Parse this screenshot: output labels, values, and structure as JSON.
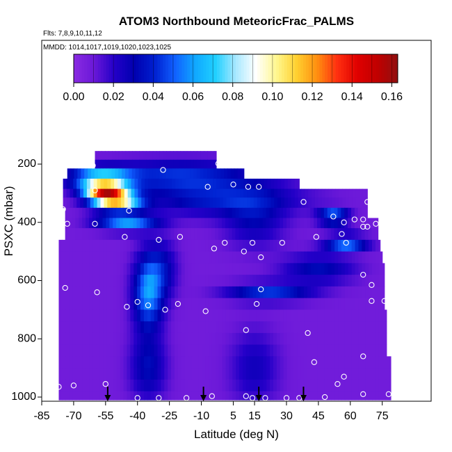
{
  "chart_data": {
    "type": "heatmap",
    "title": "ATOM3 Northbound MeteoricFrac_PALMS",
    "subtitle_flights": "Flts: 7,8,9,10,11,12",
    "subtitle_dates": "MMDD: 1014,1017,1019,1020,1023,1025",
    "xlabel": "Latitude (deg N)",
    "ylabel": "PSXC (mbar)",
    "xlim": [
      -85,
      85
    ],
    "ylim": [
      1010,
      150
    ],
    "x_ticks": [
      "-85",
      "-70",
      "-55",
      "-40",
      "-25",
      "-10",
      "5",
      "15",
      "30",
      "45",
      "60",
      "75"
    ],
    "x_tick_values": [
      -85,
      -70,
      -55,
      -40,
      -25,
      -10,
      5,
      15,
      30,
      45,
      60,
      75
    ],
    "y_ticks": [
      "200",
      "400",
      "600",
      "800",
      "1000"
    ],
    "y_tick_values": [
      200,
      400,
      600,
      800,
      1000
    ],
    "colorbar": {
      "min": 0.0,
      "max": 0.163,
      "ticks": [
        "0.00",
        "0.02",
        "0.04",
        "0.06",
        "0.08",
        "0.10",
        "0.12",
        "0.14",
        "0.16"
      ],
      "tick_values": [
        0.0,
        0.02,
        0.04,
        0.06,
        0.08,
        0.1,
        0.12,
        0.14,
        0.16
      ],
      "colors": [
        "#8a2be2",
        "#6a18d8",
        "#2400c8",
        "#0000b0",
        "#0020d0",
        "#1060ff",
        "#10a8ff",
        "#20d0ff",
        "#a8e8ff",
        "#ffffff",
        "#fff890",
        "#ffd030",
        "#ff9010",
        "#ff3010",
        "#e00000",
        "#c00000",
        "#901010"
      ]
    },
    "pressure_levels": [
      170,
      200,
      230,
      270,
      300,
      330,
      370,
      400,
      440,
      480,
      520,
      560,
      600,
      640,
      680,
      720,
      760,
      800,
      840,
      880,
      920,
      960,
      1000
    ],
    "latitude_range": [
      -74,
      78
    ],
    "value_description": "meteoric fraction by latitude and pressure",
    "arrow_latitudes": [
      -54,
      -9,
      17,
      38
    ],
    "sample_points": [
      {
        "lat": -61,
        "p": 205
      },
      {
        "lat": -60,
        "p": 290
      },
      {
        "lat": -75,
        "p": 355
      },
      {
        "lat": -73,
        "p": 405
      },
      {
        "lat": -60,
        "p": 405
      },
      {
        "lat": -46,
        "p": 450
      },
      {
        "lat": -44,
        "p": 360
      },
      {
        "lat": -30,
        "p": 460
      },
      {
        "lat": -28,
        "p": 220
      },
      {
        "lat": -20,
        "p": 450
      },
      {
        "lat": -2,
        "p": 198
      },
      {
        "lat": -7,
        "p": 278
      },
      {
        "lat": -4,
        "p": 490
      },
      {
        "lat": 1,
        "p": 470
      },
      {
        "lat": 5,
        "p": 270
      },
      {
        "lat": 12,
        "p": 278
      },
      {
        "lat": 14,
        "p": 470
      },
      {
        "lat": 10,
        "p": 500
      },
      {
        "lat": 17,
        "p": 278
      },
      {
        "lat": 18,
        "p": 520
      },
      {
        "lat": 28,
        "p": 470
      },
      {
        "lat": 38,
        "p": 330
      },
      {
        "lat": 44,
        "p": 450
      },
      {
        "lat": 52,
        "p": 380
      },
      {
        "lat": 56,
        "p": 440
      },
      {
        "lat": 58,
        "p": 470
      },
      {
        "lat": 57,
        "p": 400
      },
      {
        "lat": 62,
        "p": 390
      },
      {
        "lat": 66,
        "p": 390
      },
      {
        "lat": 66,
        "p": 415
      },
      {
        "lat": 68,
        "p": 415
      },
      {
        "lat": 72,
        "p": 405
      },
      {
        "lat": 68,
        "p": 330
      },
      {
        "lat": -74,
        "p": 625
      },
      {
        "lat": -59,
        "p": 640
      },
      {
        "lat": -40,
        "p": 673
      },
      {
        "lat": -35,
        "p": 685
      },
      {
        "lat": -45,
        "p": 690
      },
      {
        "lat": -27,
        "p": 700
      },
      {
        "lat": -21,
        "p": 680
      },
      {
        "lat": 18,
        "p": 630
      },
      {
        "lat": 16,
        "p": 680
      },
      {
        "lat": -8,
        "p": 705
      },
      {
        "lat": 11,
        "p": 770
      },
      {
        "lat": 40,
        "p": 780
      },
      {
        "lat": 66,
        "p": 580
      },
      {
        "lat": 70,
        "p": 615
      },
      {
        "lat": 70,
        "p": 670
      },
      {
        "lat": 76,
        "p": 670
      },
      {
        "lat": 66,
        "p": 860
      },
      {
        "lat": 43,
        "p": 880
      },
      {
        "lat": 57,
        "p": 930
      },
      {
        "lat": 54,
        "p": 955
      },
      {
        "lat": -77,
        "p": 965
      },
      {
        "lat": -70,
        "p": 960
      },
      {
        "lat": -55,
        "p": 955
      },
      {
        "lat": -40,
        "p": 1003
      },
      {
        "lat": -30,
        "p": 1003
      },
      {
        "lat": -17,
        "p": 1003
      },
      {
        "lat": -5,
        "p": 997
      },
      {
        "lat": 11,
        "p": 997
      },
      {
        "lat": 14,
        "p": 1003
      },
      {
        "lat": 20,
        "p": 1003
      },
      {
        "lat": 30,
        "p": 1003
      },
      {
        "lat": 36,
        "p": 1003
      },
      {
        "lat": 48,
        "p": 1000
      },
      {
        "lat": 66,
        "p": 990
      },
      {
        "lat": 78,
        "p": 990
      }
    ]
  }
}
